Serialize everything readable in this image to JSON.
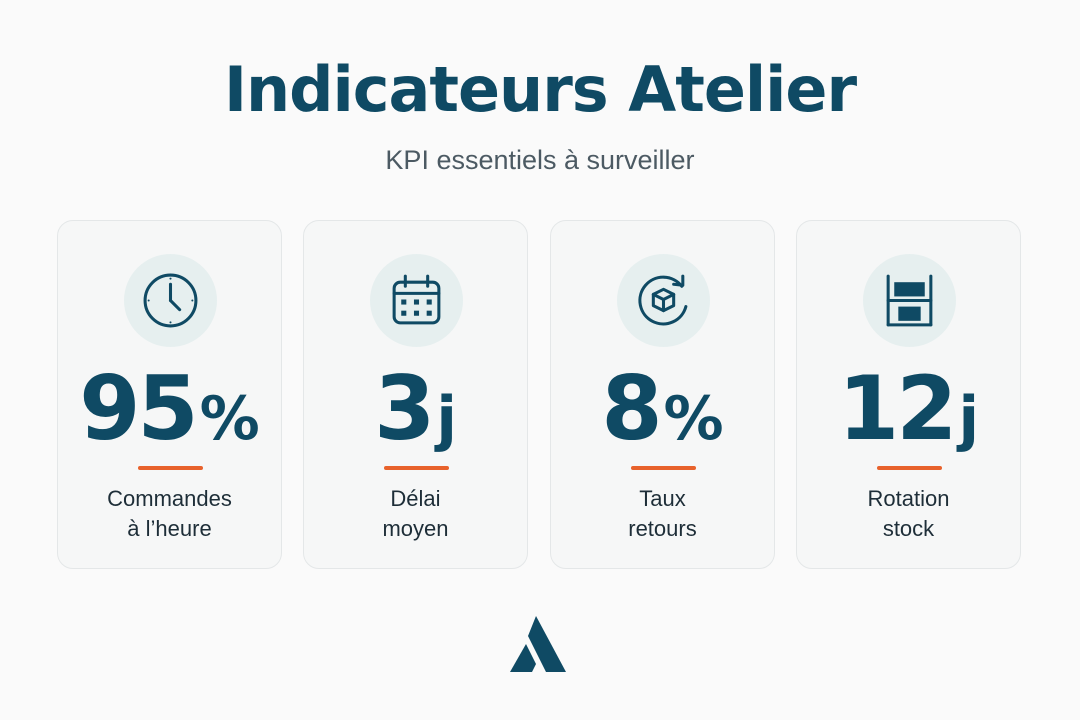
{
  "header": {
    "title": "Indicateurs Atelier",
    "subtitle": "KPI essentiels à surveiller"
  },
  "colors": {
    "primary": "#0f4a64",
    "accent": "#e8622c",
    "icon_background": "#e6efef",
    "card_background": "#f6f7f7"
  },
  "kpis": [
    {
      "icon": "clock-icon",
      "value": "95",
      "unit": "%",
      "label_line1": "Commandes",
      "label_line2": "à l’heure"
    },
    {
      "icon": "calendar-icon",
      "value": "3",
      "unit": "j",
      "label_line1": "Délai",
      "label_line2": "moyen"
    },
    {
      "icon": "box-return-icon",
      "value": "8",
      "unit": "%",
      "label_line1": "Taux",
      "label_line2": "retours"
    },
    {
      "icon": "shelf-stock-icon",
      "value": "12",
      "unit": "j",
      "label_line1": "Rotation",
      "label_line2": "stock"
    }
  ],
  "footer": {
    "logo": "brand-logo"
  }
}
